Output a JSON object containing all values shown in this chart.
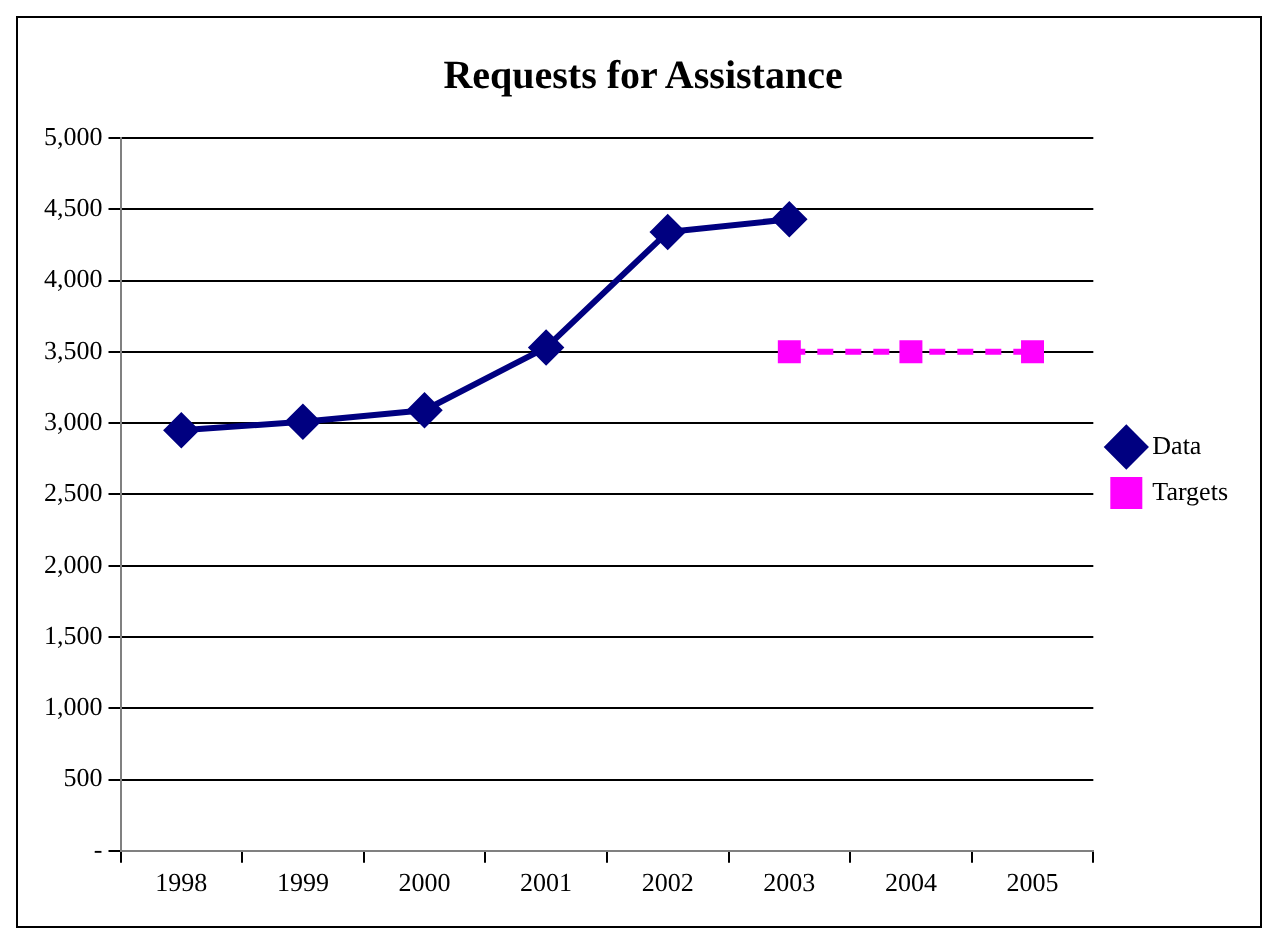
{
  "chart_data": {
    "type": "line",
    "title": "Requests for Assistance",
    "categories": [
      "1998",
      "1999",
      "2000",
      "2001",
      "2002",
      "2003",
      "2004",
      "2005"
    ],
    "series": [
      {
        "name": "Data",
        "color": "#000080",
        "values": [
          2950,
          3010,
          3090,
          3530,
          4340,
          4430,
          null,
          null
        ],
        "marker": "diamond",
        "line_style": "solid"
      },
      {
        "name": "Targets",
        "color": "#ff00ff",
        "values": [
          null,
          null,
          null,
          null,
          null,
          3500,
          3500,
          3500
        ],
        "marker": "square",
        "line_style": "dashed"
      }
    ],
    "ylim": [
      0,
      5000
    ],
    "yticks": [
      {
        "value": 0,
        "label": "-"
      },
      {
        "value": 500,
        "label": "500"
      },
      {
        "value": 1000,
        "label": "1,000"
      },
      {
        "value": 1500,
        "label": "1,500"
      },
      {
        "value": 2000,
        "label": "2,000"
      },
      {
        "value": 2500,
        "label": "2,500"
      },
      {
        "value": 3000,
        "label": "3,000"
      },
      {
        "value": 3500,
        "label": "3,500"
      },
      {
        "value": 4000,
        "label": "4,000"
      },
      {
        "value": 4500,
        "label": "4,500"
      },
      {
        "value": 5000,
        "label": "5,000"
      }
    ],
    "grid": "y",
    "legend": "right"
  }
}
